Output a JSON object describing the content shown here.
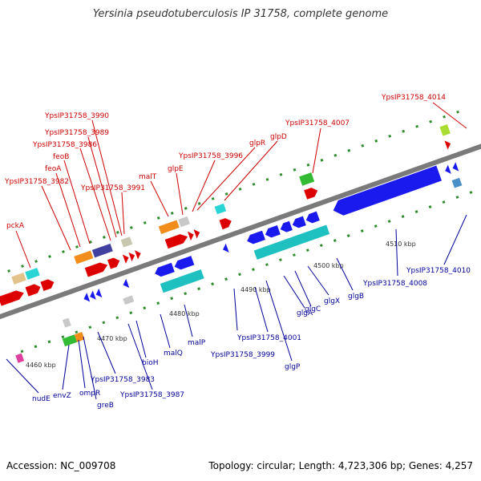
{
  "title": "Yersinia pseudotuberculosis IP 31758, complete genome",
  "footer": {
    "accession": "Accession: NC_009708",
    "summary": "Topology: circular; Length: 4,723,306 bp; Genes: 4,257"
  },
  "colors": {
    "forward_label": "#cc0000",
    "reverse_label": "#000099",
    "backbone": "#7a7a7a",
    "tick": "#2e8b2e"
  },
  "scale": {
    "unit": "kbp",
    "ticks": [
      {
        "value": 4460,
        "label": "4460 kbp"
      },
      {
        "value": 4470,
        "label": "4470 kbp"
      },
      {
        "value": 4480,
        "label": "4480 kbp"
      },
      {
        "value": 4490,
        "label": "4490 kbp"
      },
      {
        "value": 4500,
        "label": "4500 kbp"
      },
      {
        "value": 4510,
        "label": "4510 kbp"
      }
    ]
  },
  "forward_labels": [
    {
      "name": "pckA"
    },
    {
      "name": "YpsIP31758_3982"
    },
    {
      "name": "feoA"
    },
    {
      "name": "feoB"
    },
    {
      "name": "YpsIP31758_3986"
    },
    {
      "name": "YpsIP31758_3989"
    },
    {
      "name": "YpsIP31758_3990"
    },
    {
      "name": "YpsIP31758_3991"
    },
    {
      "name": "malT"
    },
    {
      "name": "glpE"
    },
    {
      "name": "YpsIP31758_3996"
    },
    {
      "name": "glpR"
    },
    {
      "name": "glpD"
    },
    {
      "name": "YpsIP31758_4007"
    },
    {
      "name": "YpsIP31758_4014"
    }
  ],
  "reverse_labels": [
    {
      "name": "nudE"
    },
    {
      "name": "envZ"
    },
    {
      "name": "ompR"
    },
    {
      "name": "greB"
    },
    {
      "name": "YpsIP31758_3983"
    },
    {
      "name": "YpsIP31758_3987"
    },
    {
      "name": "bioH"
    },
    {
      "name": "malQ"
    },
    {
      "name": "malP"
    },
    {
      "name": "YpsIP31758_3999"
    },
    {
      "name": "YpsIP31758_4001"
    },
    {
      "name": "glgP"
    },
    {
      "name": "glgA"
    },
    {
      "name": "glgC"
    },
    {
      "name": "glgX"
    },
    {
      "name": "glgB"
    },
    {
      "name": "YpsIP31758_4008"
    },
    {
      "name": "YpsIP31758_4010"
    }
  ]
}
